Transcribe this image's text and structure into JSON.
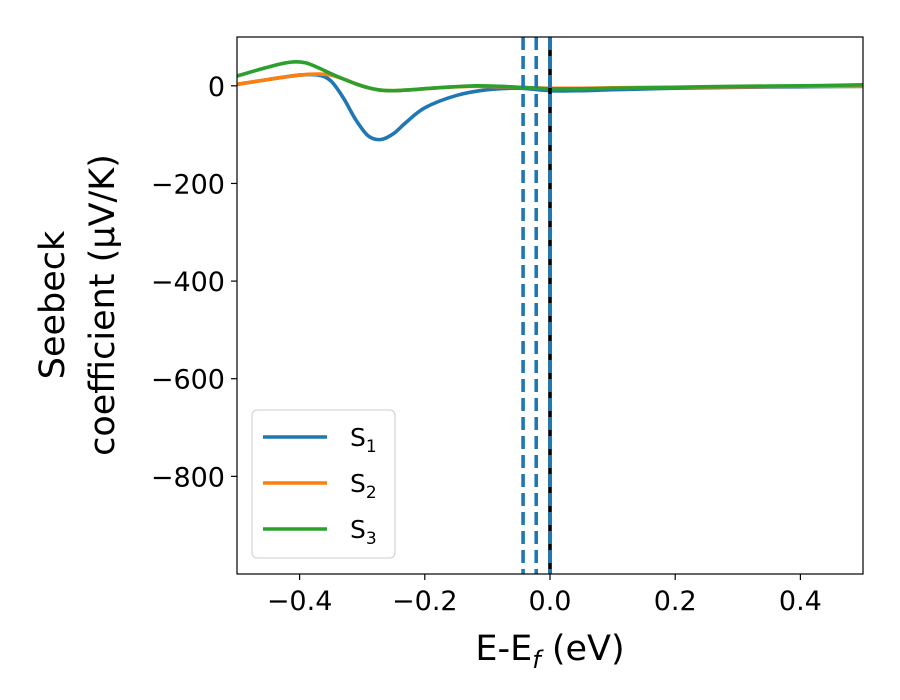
{
  "chart_data": {
    "type": "line",
    "title": "",
    "xlabel": {
      "base": "E-E",
      "sub": "f",
      "unit": " (eV)"
    },
    "ylabel": {
      "line1": "Seebeck",
      "line2": "coefficient  (μV/K)"
    },
    "xlim": [
      -0.5,
      0.5
    ],
    "ylim": [
      -1000,
      100
    ],
    "x_ticks": [
      -0.4,
      -0.2,
      0.0,
      0.2,
      0.4
    ],
    "x_tick_labels": [
      "−0.4",
      "−0.2",
      "0.0",
      "0.2",
      "0.4"
    ],
    "y_ticks": [
      0,
      -200,
      -400,
      -600,
      -800
    ],
    "y_tick_labels": [
      "0",
      "−200",
      "−400",
      "−600",
      "−800"
    ],
    "grid": false,
    "legend_position": "lower-left",
    "series": [
      {
        "name": "S1",
        "label_base": "S",
        "label_sub": "1",
        "color": "#1f77b4",
        "x": [
          -0.5,
          -0.45,
          -0.4,
          -0.37,
          -0.35,
          -0.33,
          -0.31,
          -0.29,
          -0.27,
          -0.25,
          -0.23,
          -0.2,
          -0.15,
          -0.1,
          -0.05,
          0.0,
          0.05,
          0.1,
          0.2,
          0.3,
          0.4,
          0.5
        ],
        "y": [
          3,
          13,
          22,
          22,
          10,
          -25,
          -70,
          -103,
          -110,
          -98,
          -75,
          -45,
          -20,
          -8,
          -5,
          -10,
          -10,
          -8,
          -5,
          -3,
          -2,
          -1
        ]
      },
      {
        "name": "S2",
        "label_base": "S",
        "label_sub": "2",
        "color": "#ff7f0e",
        "x": [
          -0.5,
          -0.45,
          -0.4,
          -0.37,
          -0.35,
          -0.33,
          -0.31,
          -0.29,
          -0.27,
          -0.25,
          -0.22,
          -0.18,
          -0.12,
          -0.05,
          0.0,
          0.05,
          0.1,
          0.2,
          0.3,
          0.4,
          0.5
        ],
        "y": [
          3,
          13,
          22,
          24,
          22,
          14,
          4,
          -4,
          -9,
          -10,
          -8,
          -4,
          -1,
          -3,
          -5,
          -5,
          -4,
          -3,
          -2,
          -1,
          -1
        ]
      },
      {
        "name": "S3",
        "label_base": "S",
        "label_sub": "3",
        "color": "#2ca02c",
        "x": [
          -0.5,
          -0.46,
          -0.43,
          -0.41,
          -0.39,
          -0.37,
          -0.35,
          -0.33,
          -0.31,
          -0.29,
          -0.27,
          -0.25,
          -0.22,
          -0.18,
          -0.12,
          -0.08,
          -0.05,
          0.0,
          0.05,
          0.1,
          0.2,
          0.3,
          0.4,
          0.5
        ],
        "y": [
          20,
          35,
          45,
          49,
          47,
          37,
          25,
          14,
          4,
          -4,
          -9,
          -10,
          -8,
          -4,
          0,
          -1,
          -3,
          -6,
          -6,
          -5,
          -3,
          -1,
          0,
          2
        ]
      }
    ],
    "vertical_lines": [
      {
        "x": -0.043,
        "color": "#1f77b4",
        "style": "dashed"
      },
      {
        "x": -0.022,
        "color": "#1f77b4",
        "style": "dashed"
      },
      {
        "x": 0.0,
        "color": "#000000",
        "style": "solid"
      },
      {
        "x": 0.0,
        "color": "#1f77b4",
        "style": "dashed"
      }
    ]
  }
}
